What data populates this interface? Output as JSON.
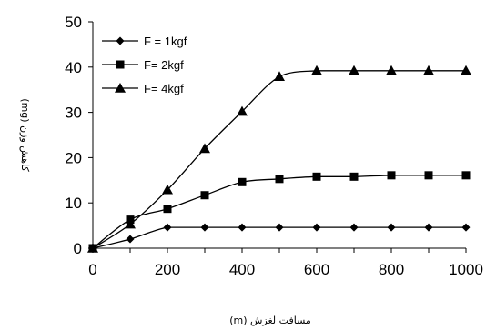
{
  "chart_data": {
    "type": "line",
    "title": "",
    "xlabel": "مسافت لغزش (m)",
    "ylabel": "کاهش وزن (mg)",
    "xlim": [
      0,
      1000
    ],
    "ylim": [
      0,
      50
    ],
    "x_ticks": [
      "0",
      "200",
      "400",
      "600",
      "800",
      "1000"
    ],
    "y_ticks": [
      "0",
      "10",
      "20",
      "30",
      "40",
      "50"
    ],
    "grid": false,
    "legend_position": "top-left",
    "series": [
      {
        "name": "F = 1kgf",
        "marker": "diamond",
        "x": [
          0,
          100,
          200,
          300,
          400,
          500,
          600,
          700,
          800,
          900,
          1000
        ],
        "y": [
          0,
          2,
          4.6,
          4.6,
          4.6,
          4.6,
          4.6,
          4.6,
          4.6,
          4.6,
          4.6
        ]
      },
      {
        "name": "F= 2kgf",
        "marker": "square",
        "x": [
          0,
          100,
          200,
          300,
          400,
          500,
          600,
          700,
          800,
          900,
          1000
        ],
        "y": [
          0,
          6.3,
          8.7,
          11.7,
          14.6,
          15.3,
          15.8,
          15.8,
          16.1,
          16.1,
          16.1
        ]
      },
      {
        "name": "F= 4kgf",
        "marker": "triangle",
        "x": [
          0,
          100,
          200,
          300,
          400,
          500,
          600,
          700,
          800,
          900,
          1000
        ],
        "y": [
          0,
          5.3,
          12.9,
          22,
          30.2,
          37.9,
          39.2,
          39.2,
          39.2,
          39.2,
          39.2
        ]
      }
    ],
    "colors": {
      "line": "#000000",
      "marker": "#000000"
    }
  }
}
